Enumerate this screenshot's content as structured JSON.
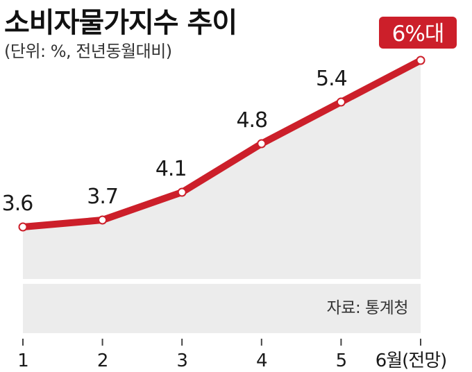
{
  "title": "소비자물가지수 추이",
  "subtitle": "(단위: %, 전년동월대비)",
  "source": "자료: 통계청",
  "colors": {
    "line": "#cc1f2a",
    "area": "#ececec",
    "badge_bg": "#cc1f2a",
    "badge_text": "#ffffff",
    "marker_fill": "#ffffff"
  },
  "chart_data": {
    "type": "area",
    "title": "소비자물가지수 추이",
    "subtitle": "(단위: %, 전년동월대비)",
    "categories": [
      "1",
      "2",
      "3",
      "4",
      "5",
      "6월(전망)"
    ],
    "series": [
      {
        "values": [
          3.6,
          3.7,
          4.1,
          4.8,
          5.4,
          6.0
        ]
      }
    ],
    "data_labels": [
      "3.6",
      "3.7",
      "4.1",
      "4.8",
      "5.4",
      "6%대"
    ],
    "highlight_label": "6%대",
    "grid": false
  }
}
